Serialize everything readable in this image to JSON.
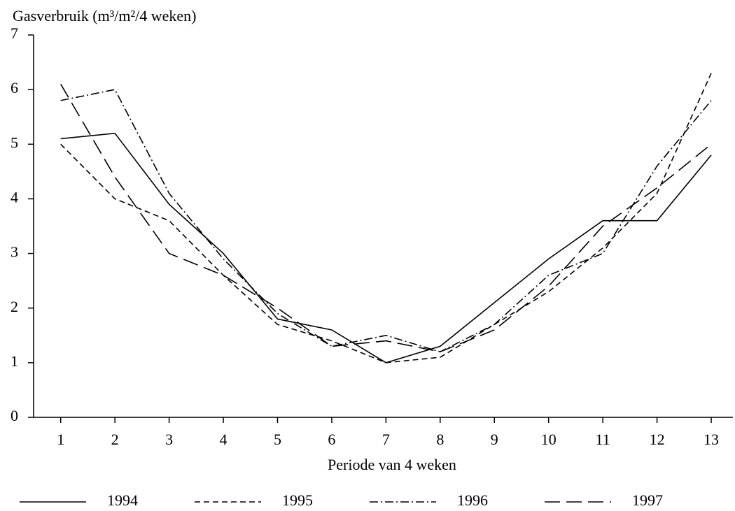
{
  "chart_data": {
    "type": "line",
    "y_label": "Gasverbruik (m³/m²/4 weken)",
    "x_label": "Periode van 4 weken",
    "x": [
      1,
      2,
      3,
      4,
      5,
      6,
      7,
      8,
      9,
      10,
      11,
      12,
      13
    ],
    "xlim": [
      0.5,
      13.4
    ],
    "xticks": [
      1,
      2,
      3,
      4,
      5,
      6,
      7,
      8,
      9,
      10,
      11,
      12,
      13
    ],
    "ylim": [
      0,
      7
    ],
    "yticks": [
      0,
      1,
      2,
      3,
      4,
      5,
      6,
      7
    ],
    "legend": "bottom",
    "series": [
      {
        "name": "1994",
        "color": "#000000",
        "dash": "solid",
        "values": [
          5.1,
          5.2,
          3.9,
          3.0,
          1.8,
          1.6,
          1.0,
          1.3,
          2.1,
          2.9,
          3.6,
          3.6,
          4.8
        ]
      },
      {
        "name": "1995",
        "color": "#000000",
        "dash": "dashed",
        "values": [
          5.0,
          4.0,
          3.6,
          2.6,
          1.7,
          1.4,
          1.0,
          1.1,
          1.7,
          2.3,
          3.1,
          4.1,
          6.3
        ]
      },
      {
        "name": "1996",
        "color": "#000000",
        "dash": "dashdot",
        "values": [
          5.8,
          6.0,
          4.1,
          2.9,
          1.9,
          1.3,
          1.5,
          1.2,
          1.7,
          2.6,
          3.0,
          4.6,
          5.8
        ]
      },
      {
        "name": "1997",
        "color": "#000000",
        "dash": "longdash",
        "values": [
          6.1,
          4.4,
          3.0,
          2.6,
          2.0,
          1.3,
          1.4,
          1.2,
          1.6,
          2.4,
          3.5,
          4.2,
          5.0
        ]
      }
    ]
  }
}
